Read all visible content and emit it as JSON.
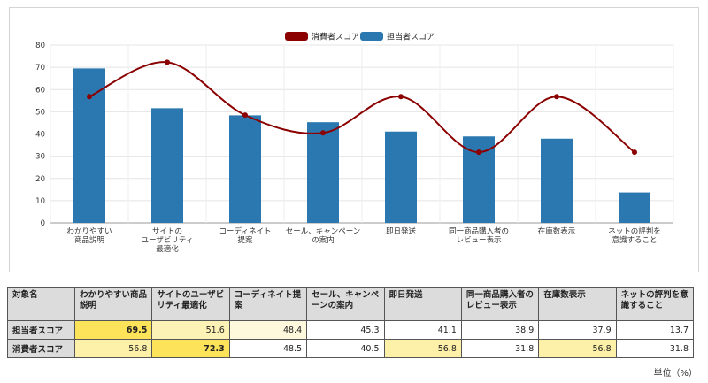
{
  "chart_data": {
    "type": "bar+line",
    "categories": [
      "わかりやすい\n商品説明",
      "サイトの\nユーザビリティ\n最適化",
      "コーディネイト\n提案",
      "セール、キャンペーン\nの案内",
      "即日発送",
      "同一商品購入者の\nレビュー表示",
      "在庫数表示",
      "ネットの評判を\n意識すること"
    ],
    "series": [
      {
        "name": "消費者スコア",
        "type": "line",
        "color": "#8b0000",
        "values": [
          56.8,
          72.3,
          48.5,
          40.5,
          56.8,
          31.8,
          56.8,
          31.8
        ]
      },
      {
        "name": "担当者スコア",
        "type": "bar",
        "color": "#2b78b0",
        "values": [
          69.5,
          51.6,
          48.4,
          45.3,
          41.1,
          38.9,
          37.9,
          13.7
        ]
      }
    ],
    "ylim": [
      0,
      80
    ],
    "yticks": [
      0,
      10,
      20,
      30,
      40,
      50,
      60,
      70,
      80
    ],
    "legend_position": "top-center",
    "grid": true
  },
  "table": {
    "header_label": "対象名",
    "columns": [
      "わかりやすい商品説明",
      "サイトのユーザビリティ最適化",
      "コーディネイト提案",
      "セール、キャンペーンの案内",
      "即日発送",
      "同一商品購入者のレビュー表示",
      "在庫数表示",
      "ネットの評判を意識すること"
    ],
    "rows": [
      {
        "label": "担当者スコア",
        "values": [
          "69.5",
          "51.6",
          "48.4",
          "45.3",
          "41.1",
          "38.9",
          "37.9",
          "13.7"
        ],
        "colors": [
          "#fde35a",
          "#fdf2b5",
          "#fef8dc",
          "#ffffff",
          "#ffffff",
          "#ffffff",
          "#ffffff",
          "#ffffff"
        ],
        "bold": [
          true,
          false,
          false,
          false,
          false,
          false,
          false,
          false
        ]
      },
      {
        "label": "消費者スコア",
        "values": [
          "56.8",
          "72.3",
          "48.5",
          "40.5",
          "56.8",
          "31.8",
          "56.8",
          "31.8"
        ],
        "colors": [
          "#fdf0a8",
          "#fde35a",
          "#ffffff",
          "#ffffff",
          "#fdf0a8",
          "#ffffff",
          "#fdf0a8",
          "#ffffff"
        ],
        "bold": [
          false,
          true,
          false,
          false,
          false,
          false,
          false,
          false
        ]
      }
    ]
  },
  "unit_label": "単位（%）"
}
